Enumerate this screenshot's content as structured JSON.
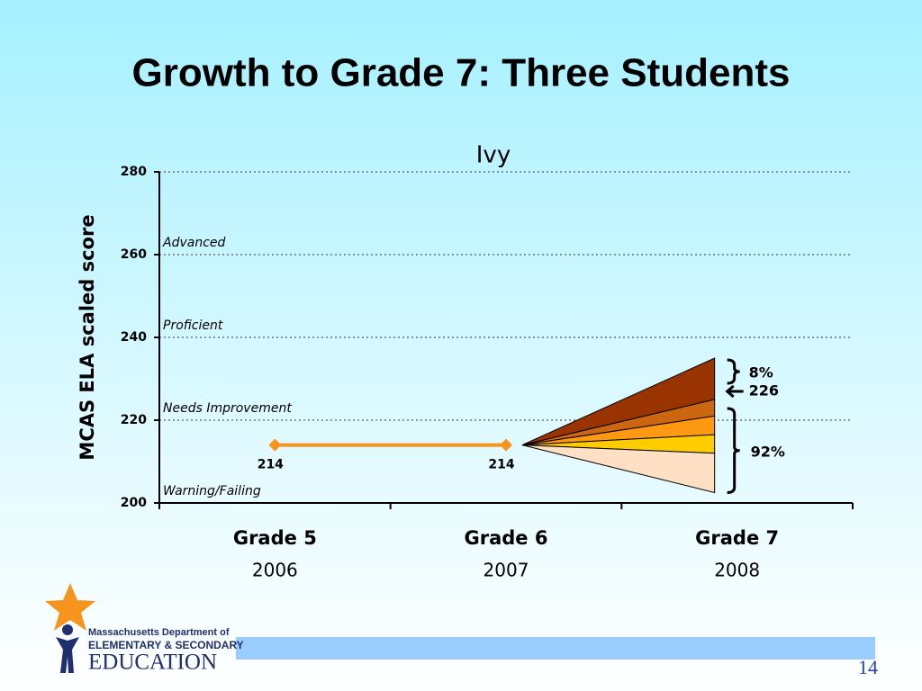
{
  "slide": {
    "title": "Growth to Grade 7: Three Students",
    "page_number": "14"
  },
  "logo": {
    "lines": [
      "Massachusetts Department of",
      "ELEMENTARY & SECONDARY",
      "EDUCATION"
    ]
  },
  "chart_data": {
    "type": "line",
    "title": "Ivy",
    "y_label": "MCAS ELA scaled score",
    "categories": [
      "Grade 5",
      "Grade 6",
      "Grade 7"
    ],
    "years": [
      "2006",
      "2007",
      "2008"
    ],
    "series": [
      {
        "name": "Ivy",
        "color": "#f7941d",
        "values": [
          214,
          214,
          null
        ]
      }
    ],
    "ylim": [
      200,
      280
    ],
    "yticks": [
      200,
      220,
      240,
      260,
      280
    ],
    "grid": true,
    "bands": [
      {
        "label": "Advanced",
        "from": 260
      },
      {
        "label": "Proficient",
        "from": 240
      },
      {
        "label": "Needs Improvement",
        "from": 220
      },
      {
        "label": "Warning/Failing",
        "from": 200
      }
    ],
    "fan": {
      "from": 214,
      "values": [
        235,
        225,
        221,
        216.5,
        212,
        202.5
      ],
      "colors": [
        "#993300",
        "#cc6611",
        "#ff9911",
        "#ffcc00",
        "#ffe0c4"
      ]
    },
    "annotations": [
      "8%",
      "226",
      "92%"
    ]
  }
}
